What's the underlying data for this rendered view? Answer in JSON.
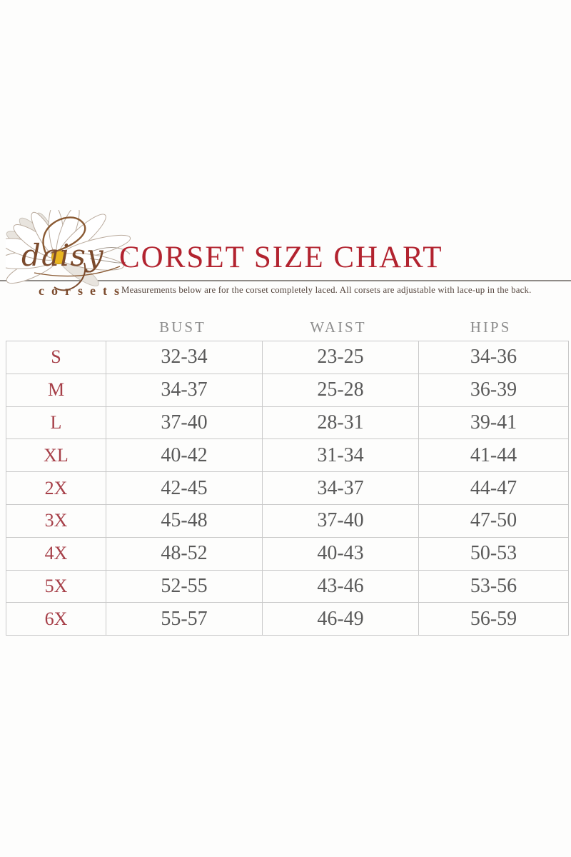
{
  "brand": {
    "logo_script": "daisy",
    "logo_word": "corsets"
  },
  "header": {
    "title": "CORSET SIZE CHART",
    "subtitle": "Measurements below are for the corset completely laced.  All corsets are adjustable with lace-up in the back."
  },
  "chart_data": {
    "type": "table",
    "title": "CORSET SIZE CHART",
    "columns": [
      "",
      "BUST",
      "WAIST",
      "HIPS"
    ],
    "rows": [
      [
        "S",
        "32-34",
        "23-25",
        "34-36"
      ],
      [
        "M",
        "34-37",
        "25-28",
        "36-39"
      ],
      [
        "L",
        "37-40",
        "28-31",
        "39-41"
      ],
      [
        "XL",
        "40-42",
        "31-34",
        "41-44"
      ],
      [
        "2X",
        "42-45",
        "34-37",
        "44-47"
      ],
      [
        "3X",
        "45-48",
        "37-40",
        "47-50"
      ],
      [
        "4X",
        "48-52",
        "40-43",
        "50-53"
      ],
      [
        "5X",
        "52-55",
        "43-46",
        "53-56"
      ],
      [
        "6X",
        "55-57",
        "46-49",
        "56-59"
      ]
    ]
  },
  "icons": {
    "logo_icon": "daisy-flower-icon"
  },
  "colors": {
    "title_red": "#b2232f",
    "size_label_red": "#a63f48",
    "value_gray": "#5a5a5a",
    "column_header_gray": "#8d8d8d",
    "table_border_gray": "#c9c9c9",
    "subtitle_brown": "#54443c",
    "logo_brown": "#7b4a2c",
    "daisy_center_gold": "#e9b51f",
    "divider_gray": "#8f8b87",
    "background": "#fdfdfc"
  }
}
